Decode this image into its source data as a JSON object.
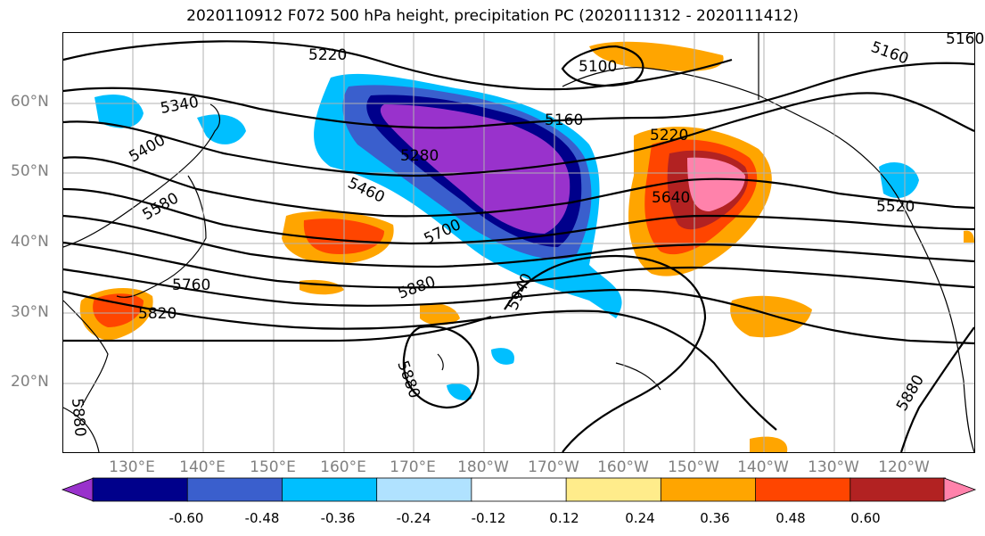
{
  "title": "2020110912 F072 500 hPa height, precipitation PC (2020111312 - 2020111412)",
  "lat_labels": [
    "60°N",
    "50°N",
    "40°N",
    "30°N",
    "20°N"
  ],
  "lon_labels": [
    "130°E",
    "140°E",
    "150°E",
    "160°E",
    "170°E",
    "180°W",
    "170°W",
    "160°W",
    "150°W",
    "140°W",
    "130°W",
    "120°W"
  ],
  "contour_labels": [
    "5220",
    "5160",
    "5160",
    "5340",
    "5400",
    "5280",
    "5160",
    "5220",
    "5460",
    "5580",
    "5640",
    "5520",
    "5700",
    "5760",
    "5880",
    "5820",
    "5940",
    "5880",
    "5880",
    "5880",
    "5100"
  ],
  "colorbar": {
    "ticks": [
      "-0.60",
      "-0.48",
      "-0.36",
      "-0.24",
      "-0.12",
      "0.12",
      "0.24",
      "0.36",
      "0.48",
      "0.60"
    ],
    "colors": [
      "#9932cc",
      "#00008b",
      "#3a5fcd",
      "#00bfff",
      "#b0e2ff",
      "#ffffff",
      "#ffec8b",
      "#ffa500",
      "#ff4500",
      "#b22222",
      "#ff82ab"
    ]
  }
}
